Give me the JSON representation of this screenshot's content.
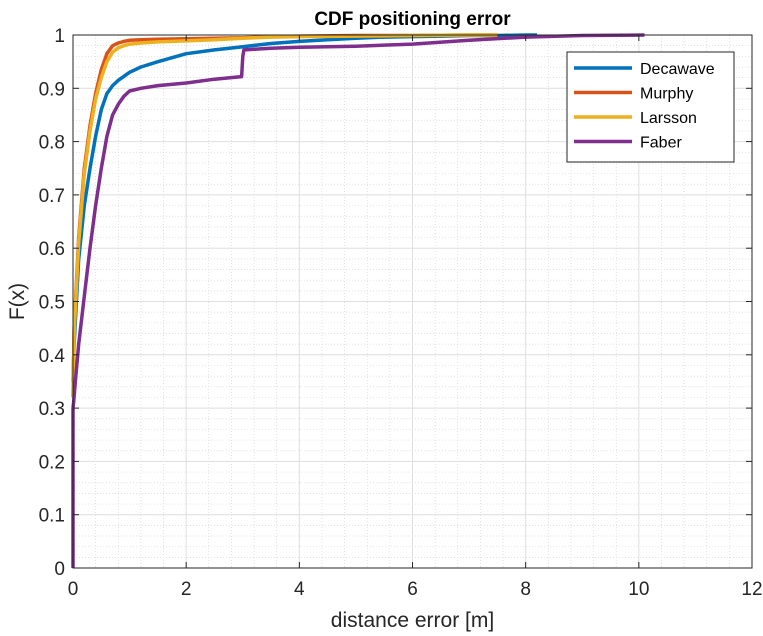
{
  "chart_data": {
    "type": "line",
    "title": "CDF positioning error",
    "xlabel": "distance error [m]",
    "ylabel": "F(x)",
    "xlim": [
      0,
      12
    ],
    "ylim": [
      0,
      1
    ],
    "x_ticks": [
      0,
      2,
      4,
      6,
      8,
      10,
      12
    ],
    "y_ticks": [
      0,
      0.1,
      0.2,
      0.3,
      0.4,
      0.5,
      0.6,
      0.7,
      0.8,
      0.9,
      1
    ],
    "x_tick_labels": [
      "0",
      "2",
      "4",
      "6",
      "8",
      "10",
      "12"
    ],
    "y_tick_labels": [
      "0",
      "0.1",
      "0.2",
      "0.3",
      "0.4",
      "0.5",
      "0.6",
      "0.7",
      "0.8",
      "0.9",
      "1"
    ],
    "grid": true,
    "minor_grid": true,
    "legend_position": "top-right",
    "series": [
      {
        "name": "Decawave",
        "color": "#0072BD",
        "x": [
          0,
          0.02,
          0.1,
          0.2,
          0.3,
          0.4,
          0.5,
          0.6,
          0.7,
          0.8,
          1.0,
          1.2,
          1.5,
          2.0,
          2.5,
          3.0,
          3.5,
          4.0,
          4.5,
          5.0,
          5.5,
          6.0,
          6.5,
          7.0,
          7.5,
          8.0,
          8.2
        ],
        "y": [
          0.35,
          0.42,
          0.58,
          0.68,
          0.75,
          0.81,
          0.86,
          0.89,
          0.905,
          0.915,
          0.93,
          0.94,
          0.95,
          0.965,
          0.972,
          0.978,
          0.984,
          0.988,
          0.991,
          0.994,
          0.996,
          0.997,
          0.998,
          0.999,
          0.999,
          1.0,
          1.0
        ]
      },
      {
        "name": "Murphy",
        "color": "#D95319",
        "x": [
          0,
          0.02,
          0.1,
          0.2,
          0.3,
          0.4,
          0.5,
          0.6,
          0.7,
          0.8,
          0.9,
          1.0,
          1.2,
          1.5,
          2.0,
          2.5,
          3.0,
          3.5,
          4.0,
          5.0,
          6.0,
          7.0,
          7.5
        ],
        "y": [
          0.32,
          0.45,
          0.62,
          0.75,
          0.83,
          0.89,
          0.935,
          0.965,
          0.98,
          0.985,
          0.988,
          0.99,
          0.991,
          0.992,
          0.993,
          0.994,
          0.995,
          0.997,
          0.998,
          0.999,
          0.999,
          1.0,
          1.0
        ]
      },
      {
        "name": "Larsson",
        "color": "#EDB120",
        "x": [
          0,
          0.02,
          0.1,
          0.2,
          0.3,
          0.4,
          0.5,
          0.6,
          0.7,
          0.8,
          0.9,
          1.0,
          1.2,
          1.5,
          2.0,
          2.5,
          3.0,
          3.5,
          4.0,
          5.0,
          6.0,
          7.0,
          7.5
        ],
        "y": [
          0.32,
          0.44,
          0.61,
          0.74,
          0.82,
          0.88,
          0.92,
          0.95,
          0.968,
          0.976,
          0.98,
          0.983,
          0.985,
          0.987,
          0.989,
          0.991,
          0.994,
          0.996,
          0.997,
          0.998,
          0.999,
          1.0,
          1.0
        ]
      },
      {
        "name": "Faber",
        "color": "#7E2F8E",
        "x": [
          0,
          0.0,
          0.01,
          0.05,
          0.1,
          0.2,
          0.3,
          0.4,
          0.5,
          0.6,
          0.7,
          0.8,
          0.9,
          1.0,
          1.2,
          1.5,
          2.0,
          2.5,
          2.98,
          3.0,
          3.02,
          3.5,
          4.0,
          5.0,
          6.0,
          7.0,
          8.0,
          9.0,
          10.1
        ],
        "y": [
          0.0,
          0.3,
          0.31,
          0.36,
          0.42,
          0.51,
          0.6,
          0.68,
          0.75,
          0.81,
          0.85,
          0.87,
          0.885,
          0.895,
          0.9,
          0.905,
          0.91,
          0.917,
          0.922,
          0.96,
          0.972,
          0.975,
          0.977,
          0.979,
          0.983,
          0.99,
          0.996,
          0.999,
          1.0
        ]
      }
    ]
  }
}
